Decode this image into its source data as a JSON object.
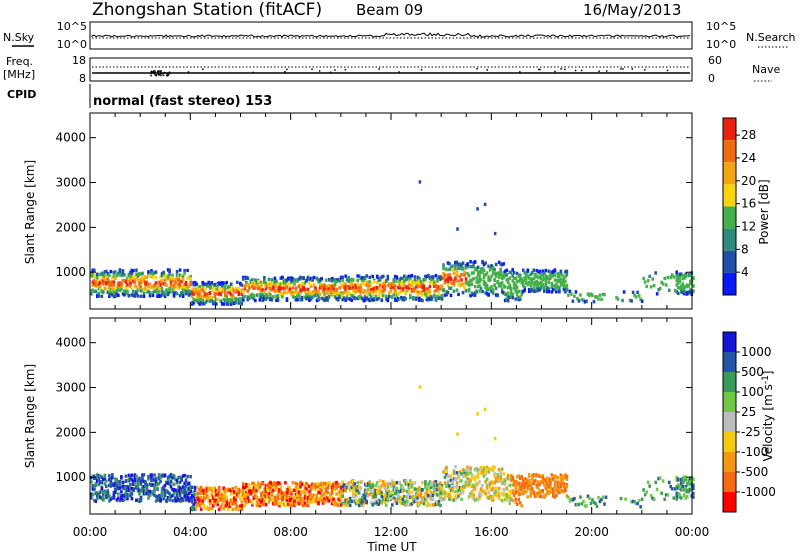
{
  "header": {
    "station": "Zhongshan Station (fitACF)",
    "beam": "Beam 09",
    "date": "16/May/2013",
    "mode": "normal (fast stereo) 153"
  },
  "labels": {
    "nsky": "N.Sky",
    "nsearch": "N.Search",
    "freq_line1": "Freq.",
    "freq_line2": "[MHz]",
    "cpid": "CPID",
    "nave": "Nave",
    "slant_range": "Slant Range [km]",
    "time_ut": "Time UT",
    "power_label": "Power [dB]",
    "velocity_label": "Velocity [m s",
    "velocity_sup": "-1",
    "velocity_close": "]"
  },
  "colors": {
    "power_scale": [
      "#0a1af5",
      "#1f4fa6",
      "#2e8a7c",
      "#45b04a",
      "#f6d510",
      "#f2a512",
      "#ef6d0f",
      "#e92210"
    ],
    "velocity_scale": [
      "#ff0000",
      "#f56a10",
      "#f29a0f",
      "#f5cb10",
      "#bdbdbd",
      "#70c844",
      "#3a9a5a",
      "#2456a8",
      "#1515d9"
    ]
  },
  "chart_data": [
    {
      "type": "line",
      "name": "N.Sky / N.Search panel",
      "left_ticks": [
        "10^5",
        "10^0"
      ],
      "right_ticks": [
        "10^5",
        "10^0"
      ],
      "y_scale": "log",
      "xlim": [
        "00:00",
        "00:00"
      ]
    },
    {
      "type": "line",
      "name": "Freq / Nave panel",
      "left_ticks": [
        "18",
        "8"
      ],
      "right_ticks": [
        "60",
        "0"
      ],
      "xlim": [
        "00:00",
        "00:00"
      ]
    },
    {
      "type": "heatmap",
      "quantity": "Power",
      "ylabel": "Slant Range [km]",
      "yticks": [
        1000,
        2000,
        3000,
        4000
      ],
      "ylim": [
        180,
        4550
      ],
      "xticks": [
        "00:00",
        "04:00",
        "08:00",
        "12:00",
        "16:00",
        "20:00",
        "00:00"
      ],
      "colorbar_label": "Power [dB]",
      "colorbar_ticks": [
        "4",
        "8",
        "12",
        "16",
        "20",
        "24",
        "28"
      ],
      "colorbar_range": [
        0,
        30
      ]
    },
    {
      "type": "heatmap",
      "quantity": "Velocity",
      "ylabel": "Slant Range [km]",
      "yticks": [
        1000,
        2000,
        3000,
        4000
      ],
      "ylim": [
        180,
        4550
      ],
      "xticks": [
        "00:00",
        "04:00",
        "08:00",
        "12:00",
        "16:00",
        "20:00",
        "00:00"
      ],
      "xlabel": "Time UT",
      "colorbar_label": "Velocity [m s-1]",
      "colorbar_ticks": [
        "1000",
        "500",
        "100",
        "25",
        "-25",
        "-100",
        "-500",
        "-1000"
      ]
    }
  ]
}
